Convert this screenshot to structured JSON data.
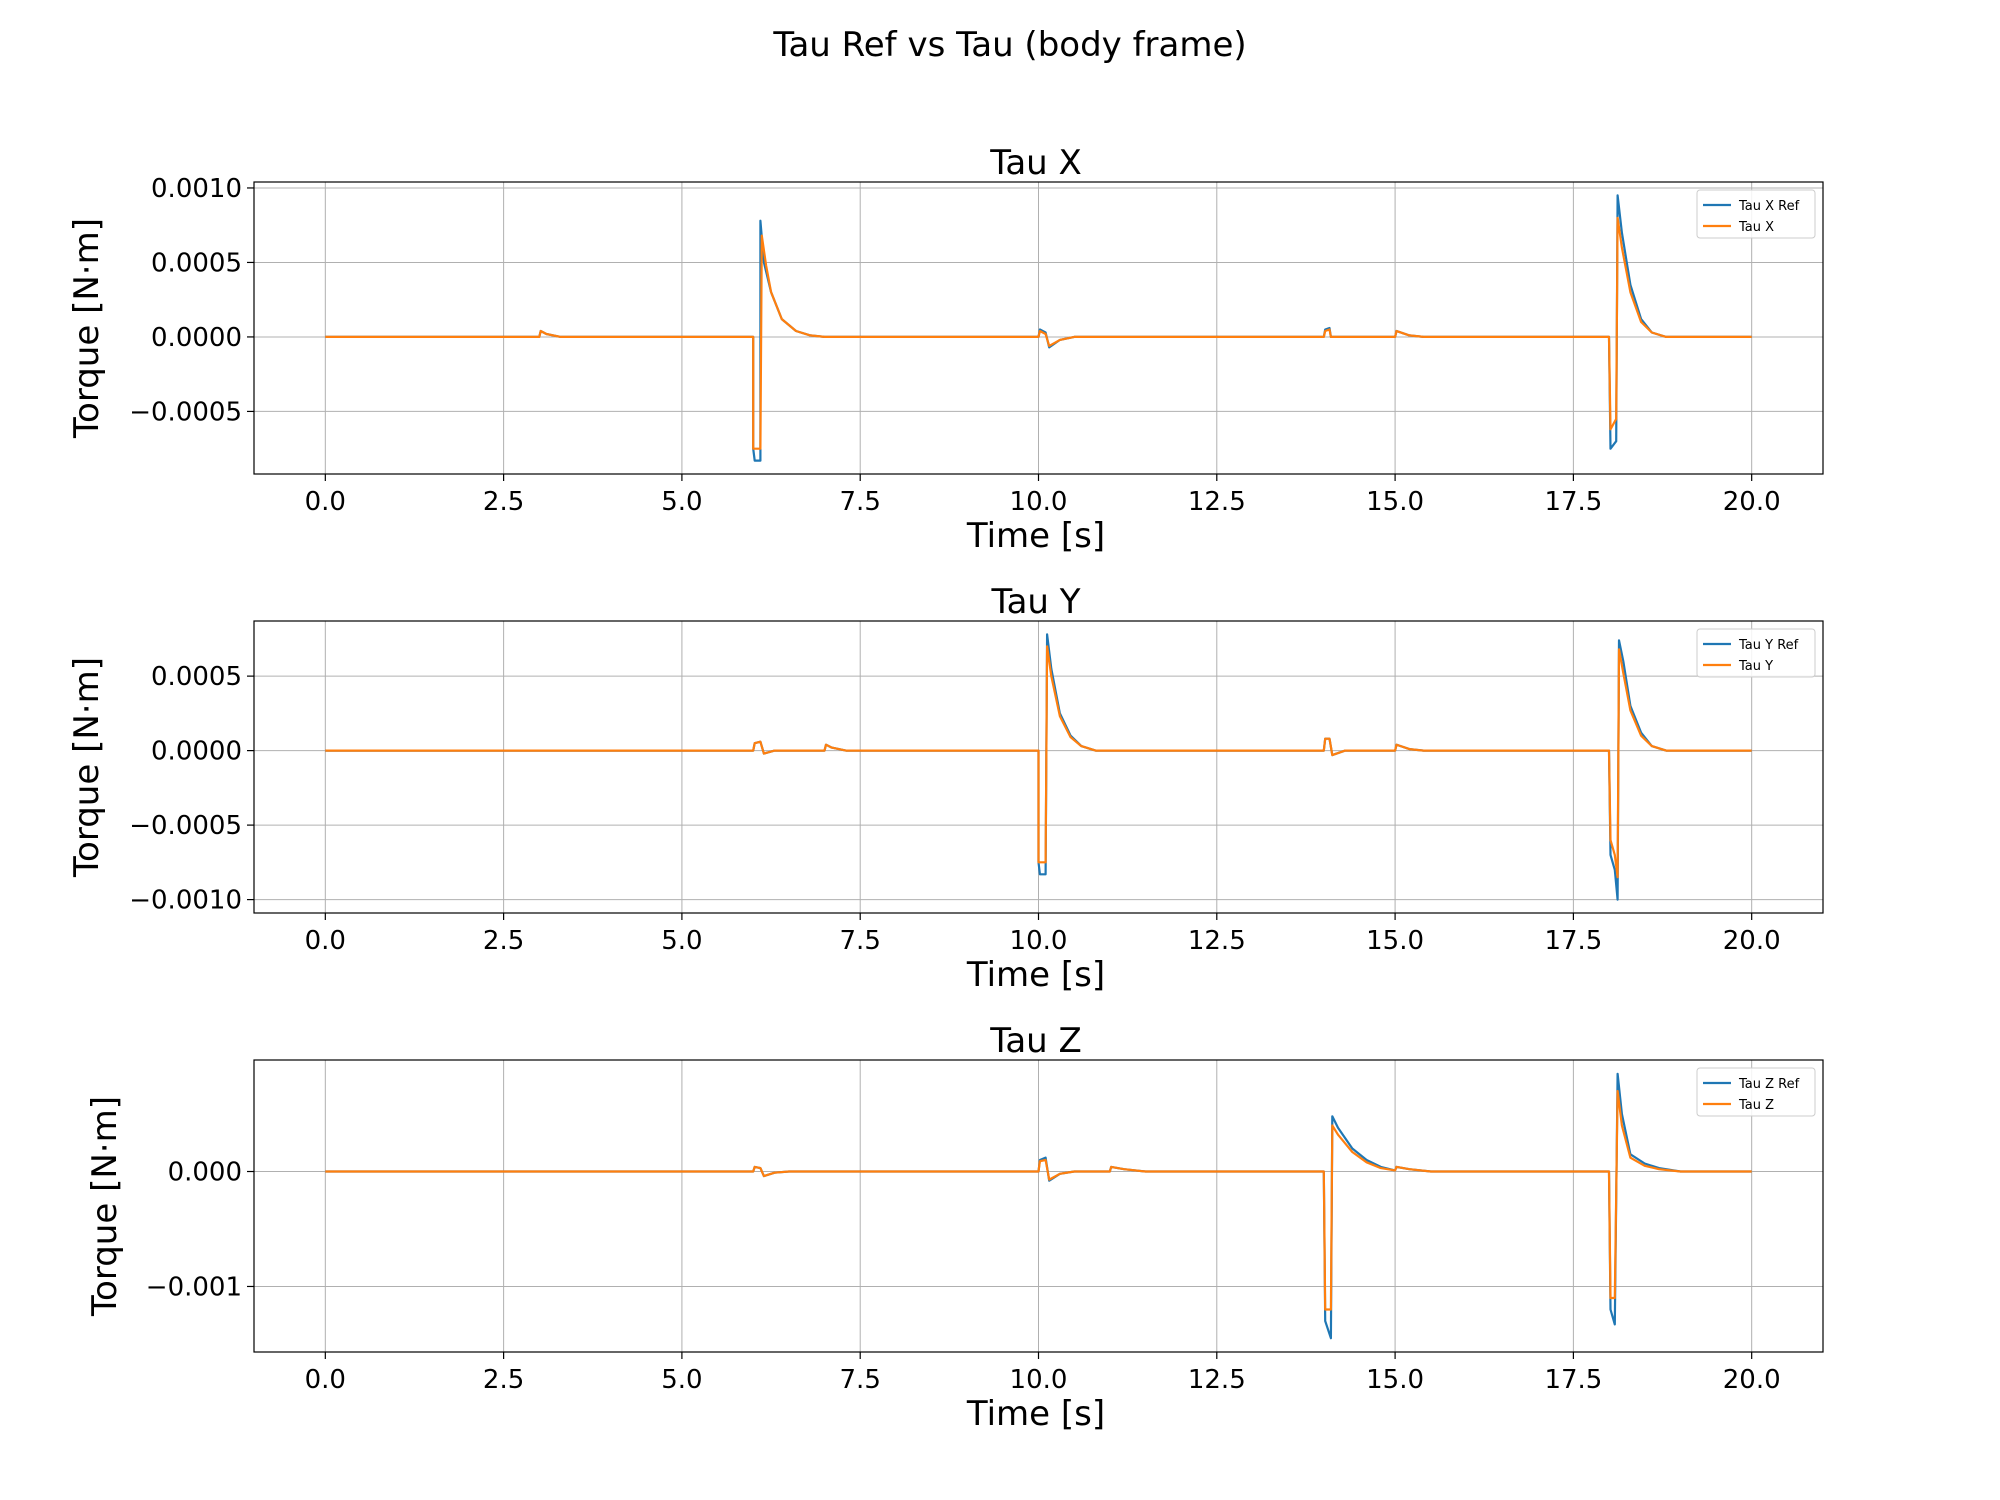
{
  "figure": {
    "title": "Tau Ref vs Tau (body frame)"
  },
  "colors": {
    "ref": "#1f77b4",
    "actual": "#ff7f0e",
    "grid": "#b0b0b0"
  },
  "chart_data": [
    {
      "type": "line",
      "title": "Tau X",
      "xlabel": "Time [s]",
      "ylabel": "Torque [N·m]",
      "xlim": [
        -1.0,
        21.0
      ],
      "ylim": [
        -0.00092,
        0.00104
      ],
      "xticks": [
        0,
        2.5,
        5,
        7.5,
        10,
        12.5,
        15,
        17.5,
        20
      ],
      "xtick_labels": [
        "0.0",
        "2.5",
        "5.0",
        "7.5",
        "10.0",
        "12.5",
        "15.0",
        "17.5",
        "20.0"
      ],
      "yticks": [
        -0.0005,
        0,
        0.0005,
        0.001
      ],
      "ytick_labels": [
        "−0.0005",
        "0.0000",
        "0.0005",
        "0.0010"
      ],
      "grid": true,
      "legend": "top-right",
      "series": [
        {
          "name": "Tau X Ref",
          "points": [
            [
              0,
              0
            ],
            [
              3.0,
              0
            ],
            [
              3.02,
              4e-05
            ],
            [
              3.1,
              2e-05
            ],
            [
              3.3,
              0
            ],
            [
              6.0,
              0
            ],
            [
              6.0,
              -0.00075
            ],
            [
              6.02,
              -0.00083
            ],
            [
              6.1,
              -0.00083
            ],
            [
              6.1,
              0.00078
            ],
            [
              6.15,
              0.0005
            ],
            [
              6.25,
              0.0003
            ],
            [
              6.4,
              0.00012
            ],
            [
              6.6,
              4e-05
            ],
            [
              6.8,
              1e-05
            ],
            [
              7.0,
              0
            ],
            [
              10.0,
              0
            ],
            [
              10.02,
              5e-05
            ],
            [
              10.1,
              3e-05
            ],
            [
              10.15,
              -7e-05
            ],
            [
              10.3,
              -2e-05
            ],
            [
              10.5,
              0
            ],
            [
              14.0,
              0
            ],
            [
              14.02,
              5e-05
            ],
            [
              14.08,
              6e-05
            ],
            [
              14.1,
              0
            ],
            [
              15.0,
              0
            ],
            [
              15.02,
              4e-05
            ],
            [
              15.2,
              1e-05
            ],
            [
              15.4,
              0
            ],
            [
              18.0,
              0
            ],
            [
              18.02,
              -0.00075
            ],
            [
              18.1,
              -0.0007
            ],
            [
              18.12,
              0.00095
            ],
            [
              18.18,
              0.0007
            ],
            [
              18.3,
              0.00035
            ],
            [
              18.45,
              0.00012
            ],
            [
              18.6,
              3e-05
            ],
            [
              18.8,
              0
            ],
            [
              20.0,
              0
            ]
          ]
        },
        {
          "name": "Tau X",
          "points": [
            [
              0,
              0
            ],
            [
              3.0,
              0
            ],
            [
              3.02,
              4e-05
            ],
            [
              3.1,
              2e-05
            ],
            [
              3.3,
              0
            ],
            [
              6.0,
              0
            ],
            [
              6.0,
              -0.00075
            ],
            [
              6.1,
              -0.00075
            ],
            [
              6.12,
              0.00068
            ],
            [
              6.18,
              0.00048
            ],
            [
              6.25,
              0.0003
            ],
            [
              6.4,
              0.00012
            ],
            [
              6.6,
              4e-05
            ],
            [
              6.8,
              1e-05
            ],
            [
              7.0,
              0
            ],
            [
              10.0,
              0
            ],
            [
              10.02,
              4e-05
            ],
            [
              10.1,
              2e-05
            ],
            [
              10.15,
              -6e-05
            ],
            [
              10.3,
              -2e-05
            ],
            [
              10.5,
              0
            ],
            [
              14.0,
              0
            ],
            [
              14.02,
              4e-05
            ],
            [
              14.08,
              5e-05
            ],
            [
              14.1,
              0
            ],
            [
              15.0,
              0
            ],
            [
              15.02,
              4e-05
            ],
            [
              15.2,
              1e-05
            ],
            [
              15.4,
              0
            ],
            [
              18.0,
              0
            ],
            [
              18.02,
              -0.00062
            ],
            [
              18.1,
              -0.00055
            ],
            [
              18.12,
              0.0008
            ],
            [
              18.18,
              0.0006
            ],
            [
              18.3,
              0.0003
            ],
            [
              18.45,
              0.0001
            ],
            [
              18.6,
              3e-05
            ],
            [
              18.8,
              0
            ],
            [
              20.0,
              0
            ]
          ]
        }
      ]
    },
    {
      "type": "line",
      "title": "Tau Y",
      "xlabel": "Time [s]",
      "ylabel": "Torque [N·m]",
      "xlim": [
        -1.0,
        21.0
      ],
      "ylim": [
        -0.00109,
        0.00087
      ],
      "xticks": [
        0,
        2.5,
        5,
        7.5,
        10,
        12.5,
        15,
        17.5,
        20
      ],
      "xtick_labels": [
        "0.0",
        "2.5",
        "5.0",
        "7.5",
        "10.0",
        "12.5",
        "15.0",
        "17.5",
        "20.0"
      ],
      "yticks": [
        -0.001,
        -0.0005,
        0,
        0.0005
      ],
      "ytick_labels": [
        "−0.0010",
        "−0.0005",
        "0.0000",
        "0.0005"
      ],
      "grid": true,
      "legend": "top-right",
      "series": [
        {
          "name": "Tau Y Ref",
          "points": [
            [
              0,
              0
            ],
            [
              6.0,
              0
            ],
            [
              6.02,
              5e-05
            ],
            [
              6.1,
              6e-05
            ],
            [
              6.15,
              -2e-05
            ],
            [
              6.3,
              0
            ],
            [
              7.0,
              0
            ],
            [
              7.02,
              4e-05
            ],
            [
              7.1,
              2e-05
            ],
            [
              7.3,
              0
            ],
            [
              10.0,
              0
            ],
            [
              10.0,
              -0.00075
            ],
            [
              10.02,
              -0.00083
            ],
            [
              10.1,
              -0.00083
            ],
            [
              10.12,
              0.00078
            ],
            [
              10.18,
              0.00055
            ],
            [
              10.3,
              0.00025
            ],
            [
              10.45,
              0.0001
            ],
            [
              10.6,
              3e-05
            ],
            [
              10.8,
              0
            ],
            [
              14.0,
              0
            ],
            [
              14.02,
              8e-05
            ],
            [
              14.08,
              8e-05
            ],
            [
              14.12,
              -3e-05
            ],
            [
              14.3,
              0
            ],
            [
              15.0,
              0
            ],
            [
              15.02,
              4e-05
            ],
            [
              15.2,
              1e-05
            ],
            [
              15.4,
              0
            ],
            [
              18.0,
              0
            ],
            [
              18.02,
              -0.0007
            ],
            [
              18.08,
              -0.0008
            ],
            [
              18.12,
              -0.001
            ],
            [
              18.14,
              0.00074
            ],
            [
              18.2,
              0.0006
            ],
            [
              18.3,
              0.0003
            ],
            [
              18.45,
              0.00012
            ],
            [
              18.6,
              3e-05
            ],
            [
              18.8,
              0
            ],
            [
              20.0,
              0
            ]
          ]
        },
        {
          "name": "Tau Y",
          "points": [
            [
              0,
              0
            ],
            [
              6.0,
              0
            ],
            [
              6.02,
              5e-05
            ],
            [
              6.1,
              6e-05
            ],
            [
              6.15,
              -2e-05
            ],
            [
              6.3,
              0
            ],
            [
              7.0,
              0
            ],
            [
              7.02,
              4e-05
            ],
            [
              7.1,
              2e-05
            ],
            [
              7.3,
              0
            ],
            [
              10.0,
              0
            ],
            [
              10.0,
              -0.00075
            ],
            [
              10.1,
              -0.00075
            ],
            [
              10.12,
              0.0007
            ],
            [
              10.18,
              0.0005
            ],
            [
              10.3,
              0.00023
            ],
            [
              10.45,
              9e-05
            ],
            [
              10.6,
              3e-05
            ],
            [
              10.8,
              0
            ],
            [
              14.0,
              0
            ],
            [
              14.02,
              8e-05
            ],
            [
              14.08,
              8e-05
            ],
            [
              14.12,
              -3e-05
            ],
            [
              14.3,
              0
            ],
            [
              15.0,
              0
            ],
            [
              15.02,
              4e-05
            ],
            [
              15.2,
              1e-05
            ],
            [
              15.4,
              0
            ],
            [
              18.0,
              0
            ],
            [
              18.02,
              -0.0006
            ],
            [
              18.08,
              -0.0007
            ],
            [
              18.12,
              -0.00085
            ],
            [
              18.14,
              0.00068
            ],
            [
              18.2,
              0.00052
            ],
            [
              18.3,
              0.00027
            ],
            [
              18.45,
              0.0001
            ],
            [
              18.6,
              3e-05
            ],
            [
              18.8,
              0
            ],
            [
              20.0,
              0
            ]
          ]
        }
      ]
    },
    {
      "type": "line",
      "title": "Tau Z",
      "xlabel": "Time [s]",
      "ylabel": "Torque [N·m]",
      "xlim": [
        -1.0,
        21.0
      ],
      "ylim": [
        -0.00157,
        0.00097
      ],
      "xticks": [
        0,
        2.5,
        5,
        7.5,
        10,
        12.5,
        15,
        17.5,
        20
      ],
      "xtick_labels": [
        "0.0",
        "2.5",
        "5.0",
        "7.5",
        "10.0",
        "12.5",
        "15.0",
        "17.5",
        "20.0"
      ],
      "yticks": [
        -0.001,
        0
      ],
      "ytick_labels": [
        "−0.001",
        "0.000"
      ],
      "grid": true,
      "legend": "top-right",
      "series": [
        {
          "name": "Tau Z Ref",
          "points": [
            [
              0,
              0
            ],
            [
              6.0,
              0
            ],
            [
              6.02,
              4e-05
            ],
            [
              6.1,
              3e-05
            ],
            [
              6.15,
              -4e-05
            ],
            [
              6.3,
              -1e-05
            ],
            [
              6.5,
              0
            ],
            [
              10.0,
              0
            ],
            [
              10.02,
              0.0001
            ],
            [
              10.1,
              0.00012
            ],
            [
              10.15,
              -8e-05
            ],
            [
              10.3,
              -2e-05
            ],
            [
              10.5,
              0
            ],
            [
              11.0,
              0
            ],
            [
              11.02,
              4e-05
            ],
            [
              11.2,
              2e-05
            ],
            [
              11.5,
              0
            ],
            [
              14.0,
              0
            ],
            [
              14.02,
              -0.0013
            ],
            [
              14.1,
              -0.00145
            ],
            [
              14.12,
              0.00048
            ],
            [
              14.2,
              0.00038
            ],
            [
              14.4,
              0.0002
            ],
            [
              14.6,
              0.0001
            ],
            [
              14.8,
              4e-05
            ],
            [
              15.0,
              1e-05
            ],
            [
              15.02,
              4e-05
            ],
            [
              15.2,
              2e-05
            ],
            [
              15.5,
              0
            ],
            [
              18.0,
              0
            ],
            [
              18.02,
              -0.0012
            ],
            [
              18.08,
              -0.00133
            ],
            [
              18.12,
              0.00085
            ],
            [
              18.18,
              0.0005
            ],
            [
              18.3,
              0.00015
            ],
            [
              18.5,
              7e-05
            ],
            [
              18.7,
              3e-05
            ],
            [
              19.0,
              0
            ],
            [
              20.0,
              0
            ]
          ]
        },
        {
          "name": "Tau Z",
          "points": [
            [
              0,
              0
            ],
            [
              6.0,
              0
            ],
            [
              6.02,
              4e-05
            ],
            [
              6.1,
              3e-05
            ],
            [
              6.15,
              -4e-05
            ],
            [
              6.3,
              -1e-05
            ],
            [
              6.5,
              0
            ],
            [
              10.0,
              0
            ],
            [
              10.02,
              9e-05
            ],
            [
              10.1,
              0.0001
            ],
            [
              10.15,
              -7e-05
            ],
            [
              10.3,
              -2e-05
            ],
            [
              10.5,
              0
            ],
            [
              11.0,
              0
            ],
            [
              11.02,
              4e-05
            ],
            [
              11.2,
              2e-05
            ],
            [
              11.5,
              0
            ],
            [
              14.0,
              0
            ],
            [
              14.02,
              -0.0012
            ],
            [
              14.1,
              -0.0012
            ],
            [
              14.12,
              0.0004
            ],
            [
              14.2,
              0.00032
            ],
            [
              14.4,
              0.00017
            ],
            [
              14.6,
              8e-05
            ],
            [
              14.8,
              3e-05
            ],
            [
              15.0,
              1e-05
            ],
            [
              15.02,
              4e-05
            ],
            [
              15.2,
              2e-05
            ],
            [
              15.5,
              0
            ],
            [
              18.0,
              0
            ],
            [
              18.02,
              -0.0011
            ],
            [
              18.08,
              -0.0011
            ],
            [
              18.12,
              0.0007
            ],
            [
              18.18,
              0.0004
            ],
            [
              18.3,
              0.00012
            ],
            [
              18.5,
              5e-05
            ],
            [
              18.7,
              2e-05
            ],
            [
              19.0,
              0
            ],
            [
              20.0,
              0
            ]
          ]
        }
      ]
    }
  ]
}
